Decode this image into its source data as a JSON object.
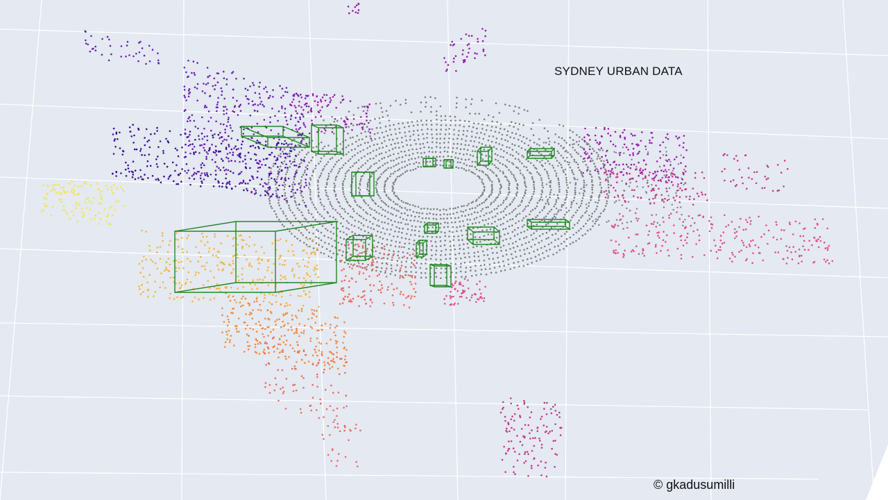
{
  "scene": {
    "title": "SYDNEY URBAN DATA",
    "credit": "© gkadusumilli",
    "background": "#e4e9f2",
    "grid_color": "#ffffff",
    "box_color": "#1f8a1f",
    "ground_color": "#808080",
    "cluster_colors": [
      "#3a0f9c",
      "#6a1fb8",
      "#9a1cb0",
      "#c63a8a",
      "#e0508c",
      "#ef6a5e",
      "#f28b3c",
      "#f6b53a",
      "#f2e84a"
    ]
  }
}
